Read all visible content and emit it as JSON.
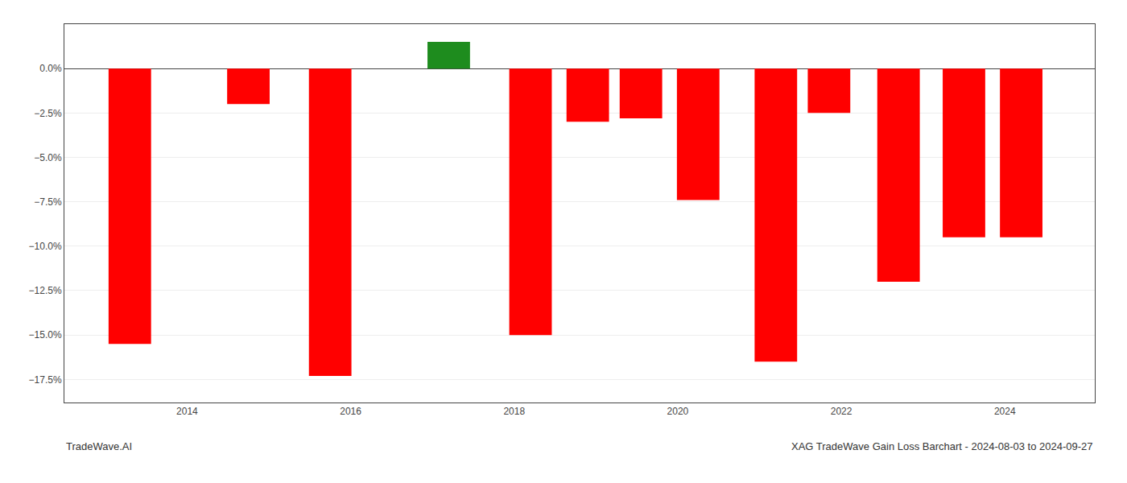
{
  "chart_data": {
    "type": "bar",
    "x": [
      2013.3,
      2014.75,
      2015.75,
      2017.2,
      2018.2,
      2018.9,
      2019.55,
      2020.25,
      2021.2,
      2021.85,
      2022.7,
      2023.5,
      2024.2
    ],
    "values": [
      -15.5,
      -2.0,
      -17.3,
      1.5,
      -15.0,
      -3.0,
      -2.8,
      -7.4,
      -16.5,
      -2.5,
      -12.0,
      -9.5,
      -9.5
    ],
    "colors": [
      "#ff0000",
      "#ff0000",
      "#ff0000",
      "#1e8c1e",
      "#ff0000",
      "#ff0000",
      "#ff0000",
      "#ff0000",
      "#ff0000",
      "#ff0000",
      "#ff0000",
      "#ff0000",
      "#ff0000"
    ],
    "xlim": [
      2012.5,
      2025.1
    ],
    "xticks": [
      2014,
      2016,
      2018,
      2020,
      2022,
      2024
    ],
    "ylim": [
      -18.8,
      2.5
    ],
    "yticks": [
      {
        "value": 0.0,
        "label": "0.0%"
      },
      {
        "value": -2.5,
        "label": "−2.5%"
      },
      {
        "value": -5.0,
        "label": "−5.0%"
      },
      {
        "value": -7.5,
        "label": "−7.5%"
      },
      {
        "value": -10.0,
        "label": "−10.0%"
      },
      {
        "value": -12.5,
        "label": "−12.5%"
      },
      {
        "value": -15.0,
        "label": "−15.0%"
      },
      {
        "value": -17.5,
        "label": "−17.5%"
      }
    ],
    "grid": true,
    "annotations": [
      {
        "text": "TradeWave.AI"
      },
      {
        "text": "XAG TradeWave Gain Loss Barchart - 2024-08-03 to 2024-09-27"
      }
    ]
  }
}
